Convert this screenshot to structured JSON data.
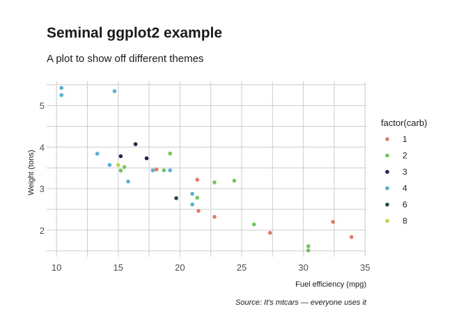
{
  "chart_data": {
    "type": "scatter",
    "title": "Seminal ggplot2 example",
    "subtitle": "A plot to show off different themes",
    "xlabel": "Fuel efficiency (mpg)",
    "ylabel": "Weight (tons)",
    "caption": "Source: It's mtcars — everyone uses it",
    "xlim": [
      9.2,
      35.1
    ],
    "ylim": [
      1.36,
      5.58
    ],
    "x_ticks": [
      10,
      15,
      20,
      25,
      30,
      35
    ],
    "y_ticks": [
      2,
      3,
      4,
      5
    ],
    "grid": true,
    "legend": {
      "title": "factor(carb)",
      "position": "right",
      "entries": [
        {
          "label": "1",
          "color": "#e07b67"
        },
        {
          "label": "2",
          "color": "#72c55c"
        },
        {
          "label": "3",
          "color": "#2d1e4a"
        },
        {
          "label": "4",
          "color": "#5aaed4"
        },
        {
          "label": "6",
          "color": "#1f4a42"
        },
        {
          "label": "8",
          "color": "#b9d84c"
        }
      ]
    },
    "series": [
      {
        "name": "1",
        "color": "#e07b67",
        "points": [
          [
            22.8,
            2.32
          ],
          [
            21.4,
            3.215
          ],
          [
            18.1,
            3.46
          ],
          [
            32.4,
            2.2
          ],
          [
            33.9,
            1.835
          ],
          [
            21.5,
            2.465
          ],
          [
            27.3,
            1.935
          ]
        ]
      },
      {
        "name": "2",
        "color": "#72c55c",
        "points": [
          [
            18.7,
            3.44
          ],
          [
            24.4,
            3.19
          ],
          [
            22.8,
            3.15
          ],
          [
            19.2,
            3.845
          ],
          [
            30.4,
            1.615
          ],
          [
            15.5,
            3.52
          ],
          [
            15.2,
            3.435
          ],
          [
            26.0,
            2.14
          ],
          [
            30.4,
            1.513
          ],
          [
            21.4,
            2.78
          ]
        ]
      },
      {
        "name": "3",
        "color": "#2d1e4a",
        "points": [
          [
            16.4,
            4.07
          ],
          [
            17.3,
            3.73
          ],
          [
            15.2,
            3.78
          ]
        ]
      },
      {
        "name": "4",
        "color": "#5aaed4",
        "points": [
          [
            21.0,
            2.62
          ],
          [
            21.0,
            2.875
          ],
          [
            14.3,
            3.57
          ],
          [
            19.2,
            3.44
          ],
          [
            17.8,
            3.44
          ],
          [
            10.4,
            5.25
          ],
          [
            10.4,
            5.424
          ],
          [
            14.7,
            5.345
          ],
          [
            13.3,
            3.84
          ],
          [
            15.8,
            3.17
          ]
        ]
      },
      {
        "name": "6",
        "color": "#1f4a42",
        "points": [
          [
            19.7,
            2.77
          ]
        ]
      },
      {
        "name": "8",
        "color": "#b9d84c",
        "points": [
          [
            15.0,
            3.57
          ]
        ]
      }
    ]
  }
}
